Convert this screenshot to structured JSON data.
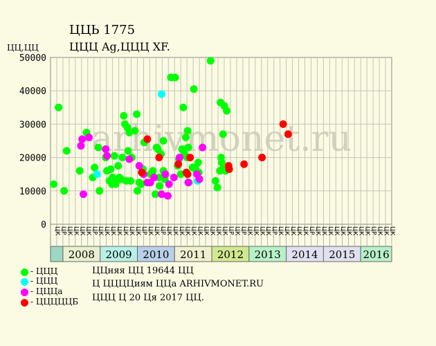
{
  "title": "ЦЦЬ 1775",
  "subtitle": "ЦЦЦ Ag,ЦЦЦ XF.",
  "ylabel": "ЦЦ,ЦЦ",
  "watermark": "arhivmonet.ru",
  "legend": [
    {
      "label": "- ЦЦЦ",
      "color": "#00ff00"
    },
    {
      "label": "- ЦЦЦ",
      "color": "#00ffff"
    },
    {
      "label": "- ЦЦЦа",
      "color": "#ff00ff"
    },
    {
      "label": "- ЦЦЦЦЦБ",
      "color": "#ff0000"
    }
  ],
  "notes": [
    "ЦЦняя ЦЦ 19644 ЦЦ",
    "Ц ЦЦЦЦиям ЦЦа ARHIVMONET.RU",
    "ЦЦЦ Ц 20 Ця 2017 ЦЦ."
  ],
  "chart_data": {
    "type": "scatter",
    "ylim": [
      0,
      50000
    ],
    "yticks": [
      0,
      10000,
      20000,
      30000,
      40000,
      50000
    ],
    "grid": true,
    "legend_position": "bottom-left",
    "xticks": [
      "ЦК",
      "ЦР",
      "ЦК",
      "ЦК",
      "ЦК",
      "ЦК",
      "ЦР",
      "ЦК",
      "ЦК",
      "ЦК",
      "ЦК",
      "ЦК",
      "ЦК",
      "ЦК",
      "ЦР",
      "ЦК",
      "ЦК",
      "ЦР",
      "ЦК",
      "ЦК",
      "ЦК",
      "ЦК",
      "ЦК",
      "ЦК",
      "ЦК",
      "ЦК",
      "ЦК",
      "ЦК",
      "ЦР",
      "ЦК",
      "ЦР",
      "ЦК",
      "ЦК",
      "ЦК",
      "ЦК",
      "ЦР",
      "ЦК",
      "ЦК",
      "ЦК",
      "ЦК",
      "ЦК",
      "ЦР",
      "ЦК",
      "ЦК",
      "ЦК",
      "ЦК",
      "ЦК",
      "ЦК",
      "ЦК",
      "ЦК",
      "ЦК",
      "ЦР",
      "ЦК",
      "ЦК",
      "ЦК"
    ],
    "years": [
      {
        "label": "2008",
        "color": "#e8f0d0"
      },
      {
        "label": "2009",
        "color": "#b8f0e8"
      },
      {
        "label": "2010",
        "color": "#b8d0e8"
      },
      {
        "label": "2011",
        "color": "#f0f0d0"
      },
      {
        "label": "2012",
        "color": "#d0e890"
      },
      {
        "label": "2013",
        "color": "#b8f0c8"
      },
      {
        "label": "2014",
        "color": "#e0e0f0"
      },
      {
        "label": "2015",
        "color": "#e0e0f0"
      },
      {
        "label": "2016",
        "color": "#b8f0c8"
      }
    ],
    "series": [
      {
        "name": "- ЦЦЦ",
        "color": "#00ff00",
        "points": [
          [
            0.5,
            12000
          ],
          [
            1.3,
            35000
          ],
          [
            2.2,
            10000
          ],
          [
            2.6,
            22000
          ],
          [
            4.7,
            16000
          ],
          [
            5.8,
            27500
          ],
          [
            6.8,
            14000
          ],
          [
            7.1,
            17000
          ],
          [
            7.7,
            23000
          ],
          [
            7.9,
            10000
          ],
          [
            8.9,
            20000
          ],
          [
            9.1,
            16000
          ],
          [
            9.5,
            13000
          ],
          [
            9.7,
            16500
          ],
          [
            9.9,
            12000
          ],
          [
            10.0,
            14000
          ],
          [
            10.3,
            20500
          ],
          [
            10.5,
            12000
          ],
          [
            10.7,
            13000
          ],
          [
            10.9,
            17500
          ],
          [
            11.1,
            14000
          ],
          [
            11.4,
            13500
          ],
          [
            11.6,
            20000
          ],
          [
            11.8,
            32500
          ],
          [
            12.0,
            30000
          ],
          [
            12.2,
            13000
          ],
          [
            12.4,
            29000
          ],
          [
            12.5,
            22000
          ],
          [
            12.7,
            27500
          ],
          [
            12.9,
            13000
          ],
          [
            13.1,
            20000
          ],
          [
            13.6,
            28000
          ],
          [
            13.9,
            33000
          ],
          [
            14.0,
            10000
          ],
          [
            14.3,
            12500
          ],
          [
            14.6,
            12000
          ],
          [
            14.9,
            16500
          ],
          [
            15.1,
            24500
          ],
          [
            16.1,
            15000
          ],
          [
            16.5,
            16000
          ],
          [
            16.9,
            9000
          ],
          [
            17.1,
            23000
          ],
          [
            17.3,
            22500
          ],
          [
            17.5,
            14000
          ],
          [
            17.6,
            11500
          ],
          [
            17.8,
            21000
          ],
          [
            18.2,
            25000
          ],
          [
            18.2,
            16000
          ],
          [
            18.4,
            13500
          ],
          [
            19.4,
            44000
          ],
          [
            20.1,
            44000
          ],
          [
            20.5,
            17500
          ],
          [
            20.7,
            19500
          ],
          [
            21.0,
            15000
          ],
          [
            21.2,
            22500
          ],
          [
            21.4,
            35000
          ],
          [
            21.6,
            21000
          ],
          [
            21.8,
            26000
          ],
          [
            22.0,
            20000
          ],
          [
            22.1,
            28000
          ],
          [
            22.2,
            23000
          ],
          [
            22.3,
            12500
          ],
          [
            22.9,
            17000
          ],
          [
            23.1,
            40500
          ],
          [
            23.3,
            17000
          ],
          [
            23.5,
            16000
          ],
          [
            23.8,
            18500
          ],
          [
            23.9,
            15500
          ],
          [
            25.8,
            49000
          ],
          [
            26.6,
            13000
          ],
          [
            26.9,
            11000
          ],
          [
            27.3,
            16000
          ],
          [
            27.4,
            36500
          ],
          [
            27.5,
            20000
          ],
          [
            27.6,
            18500
          ],
          [
            27.7,
            16500
          ],
          [
            27.8,
            27000
          ],
          [
            28.0,
            35500
          ],
          [
            28.2,
            16000
          ],
          [
            28.4,
            34000
          ]
        ]
      },
      {
        "name": "- ЦЦЦ",
        "color": "#00ffff",
        "points": [
          [
            7.5,
            15000
          ],
          [
            17.9,
            39000
          ],
          [
            23.7,
            13000
          ]
        ]
      },
      {
        "name": "- ЦЦЦа",
        "color": "#ff00ff",
        "points": [
          [
            4.9,
            23500
          ],
          [
            5.1,
            25500
          ],
          [
            5.3,
            9000
          ],
          [
            6.2,
            26000
          ],
          [
            8.9,
            22500
          ],
          [
            9.1,
            20500
          ],
          [
            12.7,
            19500
          ],
          [
            14.3,
            17500
          ],
          [
            15.0,
            15000
          ],
          [
            15.6,
            12500
          ],
          [
            16.1,
            12500
          ],
          [
            16.7,
            14000
          ],
          [
            17.9,
            9000
          ],
          [
            18.5,
            15000
          ],
          [
            18.9,
            8500
          ],
          [
            19.1,
            12000
          ],
          [
            19.9,
            14000
          ],
          [
            20.8,
            20000
          ],
          [
            22.2,
            12500
          ],
          [
            23.6,
            15000
          ],
          [
            24.0,
            13500
          ],
          [
            24.5,
            23000
          ]
        ]
      },
      {
        "name": "- ЦЦЦЦЦБ",
        "color": "#ff0000",
        "points": [
          [
            14.7,
            15500
          ],
          [
            15.6,
            25500
          ],
          [
            17.5,
            20000
          ],
          [
            20.6,
            18000
          ],
          [
            21.9,
            15500
          ],
          [
            22.1,
            15000
          ],
          [
            22.5,
            20000
          ],
          [
            28.7,
            17500
          ],
          [
            28.8,
            16500
          ],
          [
            31.2,
            18000
          ],
          [
            34.1,
            20000
          ],
          [
            37.5,
            30000
          ],
          [
            38.3,
            27000
          ]
        ]
      }
    ]
  }
}
